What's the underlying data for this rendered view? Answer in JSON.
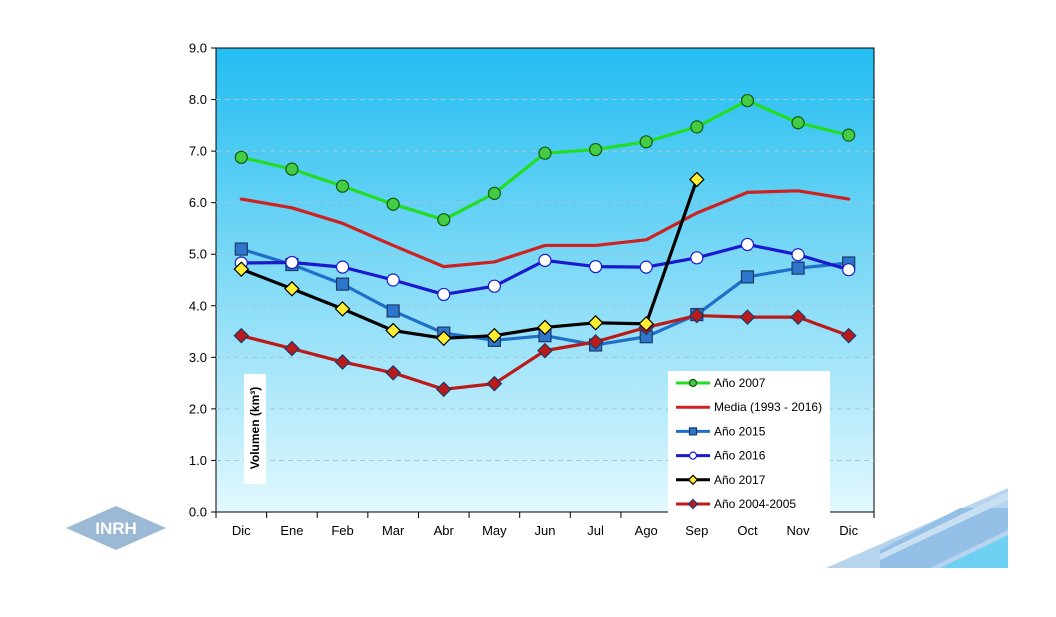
{
  "logo": {
    "text": "INRH"
  },
  "chart_data": {
    "type": "line",
    "title": "",
    "xlabel": "",
    "ylabel": "Volumen (km³)",
    "ylim": [
      0,
      9
    ],
    "y_ticks": [
      "0.0",
      "1.0",
      "2.0",
      "3.0",
      "4.0",
      "5.0",
      "6.0",
      "7.0",
      "8.0",
      "9.0"
    ],
    "grid": true,
    "legend_position": "bottom-right inside",
    "categories": [
      "Dic",
      "Ene",
      "Feb",
      "Mar",
      "Abr",
      "May",
      "Jun",
      "Jul",
      "Ago",
      "Sep",
      "Oct",
      "Nov",
      "Dic"
    ],
    "series": [
      {
        "name": "Año 2007",
        "color": "#22dd22",
        "marker": "circle",
        "marker_fill": "#44cc44",
        "values": [
          6.88,
          6.65,
          6.32,
          5.97,
          5.67,
          6.18,
          6.96,
          7.03,
          7.18,
          7.47,
          7.98,
          7.55,
          7.31
        ]
      },
      {
        "name": "Media (1993 - 2016)",
        "color": "#cc2222",
        "marker": "none",
        "marker_fill": "#cc2222",
        "values": [
          6.07,
          5.9,
          5.6,
          5.17,
          4.76,
          4.85,
          5.17,
          5.17,
          5.28,
          5.8,
          6.2,
          6.23,
          6.07
        ]
      },
      {
        "name": "Año 2015",
        "color": "#1f6fc8",
        "marker": "square",
        "marker_fill": "#2e76cc",
        "values": [
          5.1,
          4.8,
          4.42,
          3.9,
          3.47,
          3.33,
          3.42,
          3.24,
          3.4,
          3.83,
          4.56,
          4.73,
          4.83
        ]
      },
      {
        "name": "Año 2016",
        "color": "#1a1acc",
        "marker": "circle",
        "marker_fill": "#ffffff",
        "values": [
          4.83,
          4.84,
          4.75,
          4.5,
          4.22,
          4.38,
          4.88,
          4.76,
          4.75,
          4.93,
          5.19,
          4.99,
          4.7
        ]
      },
      {
        "name": "Año 2017",
        "color": "#000000",
        "marker": "diamond",
        "marker_fill": "#ffee33",
        "values": [
          4.71,
          4.33,
          3.94,
          3.52,
          3.37,
          3.42,
          3.58,
          3.67,
          3.65,
          6.45,
          null,
          null,
          null
        ]
      },
      {
        "name": "Año 2004-2005",
        "color": "#bb1a1a",
        "marker": "diamond",
        "marker_fill": "#bb1a1a",
        "values": [
          3.42,
          3.17,
          2.91,
          2.7,
          2.38,
          2.49,
          3.13,
          3.3,
          3.58,
          3.81,
          3.78,
          3.78,
          3.42
        ]
      }
    ]
  }
}
